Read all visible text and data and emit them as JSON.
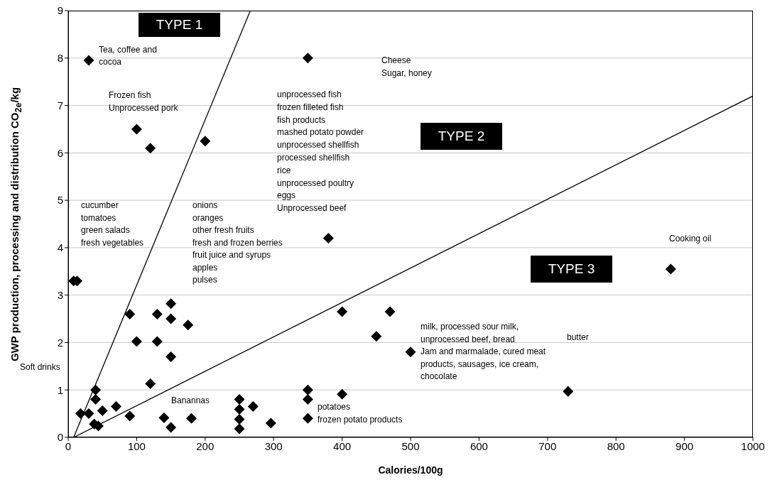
{
  "chart_data": {
    "type": "scatter",
    "xlabel": "Calories/100g",
    "ylabel": "GWP production, processing and distribution CO$_{2e}$/kg",
    "xlim": [
      0,
      1000
    ],
    "xticks": [
      0,
      100,
      200,
      300,
      400,
      500,
      600,
      700,
      800,
      900,
      1000
    ],
    "ylim": [
      0,
      9
    ],
    "yticks": [
      0,
      1,
      2,
      3,
      4,
      5,
      6,
      7,
      8,
      9
    ],
    "grid": "y",
    "legend": false,
    "series": [
      {
        "type": "scatter",
        "color": "#000000",
        "marker": "diamond",
        "x": [
          30,
          350,
          100,
          120,
          200,
          380,
          880,
          8,
          13,
          90,
          130,
          150,
          150,
          175,
          100,
          130,
          150,
          120,
          40,
          40,
          18,
          30,
          50,
          70,
          90,
          38,
          44,
          140,
          150,
          180,
          400,
          470,
          450,
          500,
          350,
          350,
          400,
          350,
          250,
          250,
          250,
          250,
          270,
          296,
          730
        ],
        "values": [
          7.95,
          8,
          6.5,
          6.1,
          6.25,
          4.2,
          3.55,
          3.3,
          3.3,
          2.6,
          2.6,
          2.82,
          2.5,
          2.37,
          2.02,
          2.02,
          1.7,
          1.13,
          1.0,
          0.8,
          0.5,
          0.5,
          0.56,
          0.65,
          0.45,
          0.28,
          0.24,
          0.41,
          0.21,
          0.4,
          2.65,
          2.65,
          2.13,
          1.8,
          1.0,
          0.8,
          0.91,
          0.4,
          0.8,
          0.59,
          0.38,
          0.18,
          0.65,
          0.3,
          0.97
        ]
      },
      {
        "type": "line",
        "color": "#000000",
        "marker": "none",
        "x": [
          8,
          266
        ],
        "values": [
          0,
          9
        ]
      },
      {
        "type": "line",
        "color": "#000000",
        "marker": "none",
        "x": [
          8,
          1000
        ],
        "values": [
          0,
          7.2
        ]
      }
    ],
    "annotations": [
      "TYPE 1",
      "TYPE 2",
      "TYPE 3",
      "Tea, coffee and\ncocoa",
      "Cheese\nSugar, honey",
      "Frozen fish\nUnprocessed pork",
      "unprocessed fish\nfrozen filleted fish\nfish products\nmashed potato powder\nunprocessed shellfish\nprocessed shellfish\nrice\nunprocessed poultry\neggs\nUnprocessed beef",
      "cucumber\ntomatoes\ngreen salads\nfresh vegetables",
      "onions\noranges\nother fresh fruits\nfresh and frozen berries\nfruit juice and syrups\napples\npulses",
      "Cooking oil",
      "milk, processed sour milk,\nunprocessed beef, bread\nJam and marmalade, cured meat\nproducts, sausages, ice cream,\nchocolate",
      "butter",
      "Soft drinks",
      "Banannas",
      "potatoes\nfrozen potato products"
    ]
  }
}
